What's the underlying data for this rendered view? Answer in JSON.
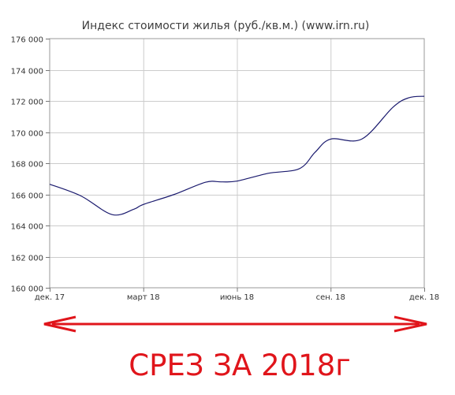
{
  "chart_data": {
    "type": "line",
    "title": "Индекс стоимости жилья (руб./кв.м.) (www.irn.ru)",
    "xlabel": "",
    "ylabel": "",
    "x": [
      0,
      1,
      2,
      2.7,
      3,
      4,
      5,
      5.5,
      6,
      7,
      8,
      8.5,
      9,
      10,
      11,
      11.5,
      12
    ],
    "values": [
      166650,
      165900,
      164700,
      165050,
      165350,
      166000,
      166780,
      166800,
      166850,
      167350,
      167650,
      168700,
      169550,
      169550,
      171600,
      172200,
      172300
    ],
    "x_ticks": [
      {
        "pos": 0,
        "label": "дек. 17"
      },
      {
        "pos": 3,
        "label": "март 18"
      },
      {
        "pos": 6,
        "label": "июнь 18"
      },
      {
        "pos": 9,
        "label": "сен. 18"
      },
      {
        "pos": 12,
        "label": "дек. 18"
      }
    ],
    "xlim": [
      0,
      12
    ],
    "ylim": [
      160000,
      176000
    ],
    "y_ticks": [
      "160 000",
      "162 000",
      "164 000",
      "166 000",
      "168 000",
      "170 000",
      "172 000",
      "174 000",
      "176 000"
    ],
    "grid": true,
    "line_color": "#1a1a6e",
    "grid_color": "#cccccc"
  },
  "annotation": {
    "caption": "СРЕЗ ЗА 2018г",
    "color": "#e0151b",
    "shape": "double-headed arrow"
  }
}
